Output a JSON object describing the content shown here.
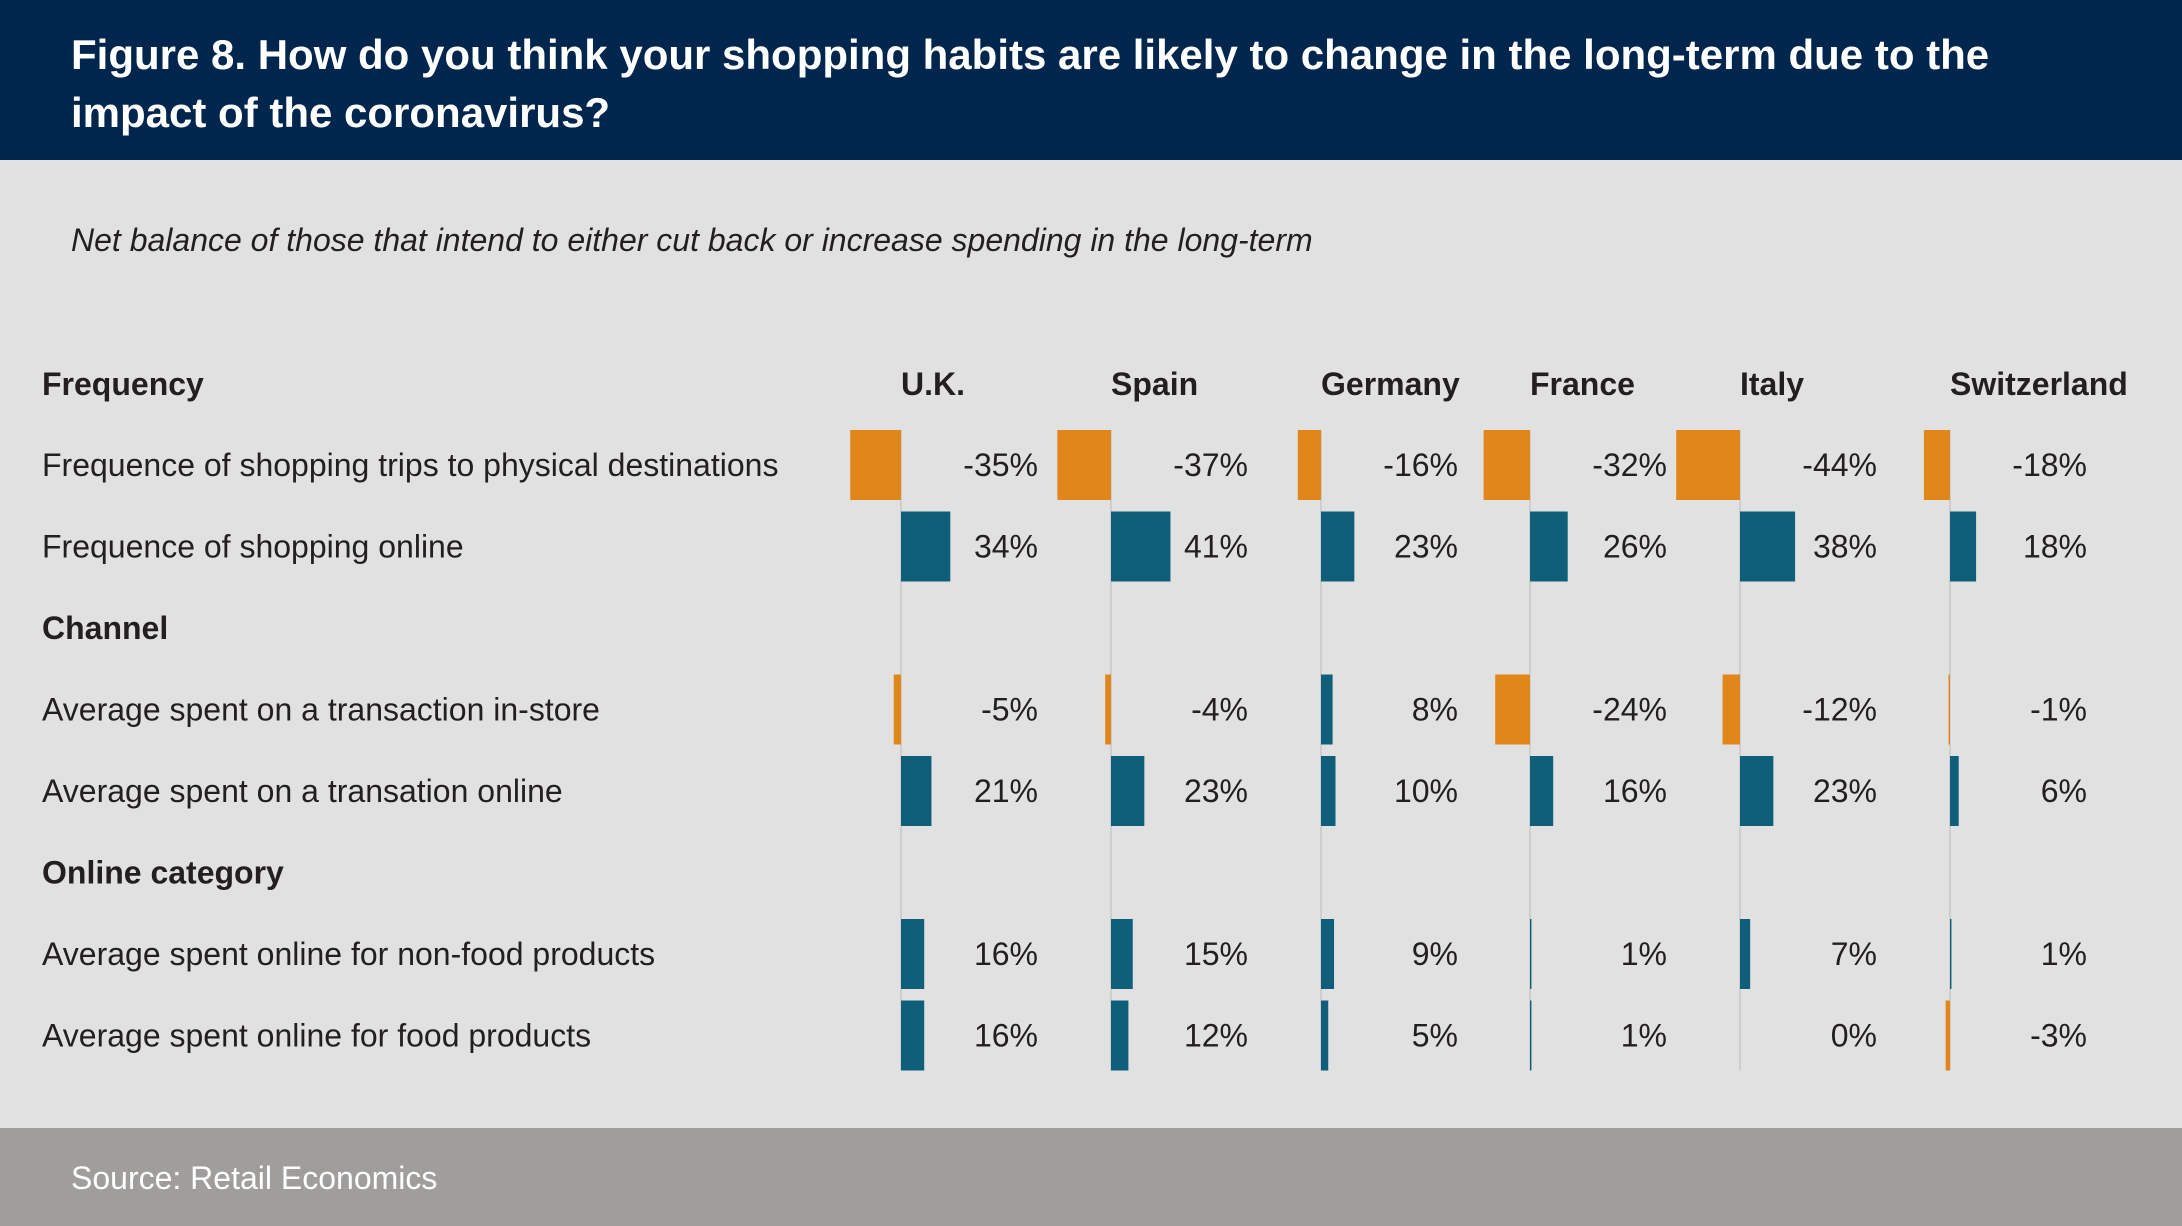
{
  "title": "Figure 8. How do you think your shopping habits are likely to change in the long-term due to the impact of the coronavirus?",
  "subtitle": "Net balance of those that intend to either cut back or increase spending in the long-term",
  "source": "Source: Retail Economics",
  "colors": {
    "negative": "#e0861a",
    "positive": "#0f5f7a",
    "header_bg": "#00264d",
    "footer_bg": "#a09e9c",
    "background": "#e1e1e1"
  },
  "chart_data": {
    "type": "bar",
    "orientation": "horizontal",
    "title": "Figure 8. How do you think your shopping habits are likely to change in the long-term due to the impact of the coronavirus?",
    "subtitle": "Net balance of those that intend to either cut back or increase spending in the long-term",
    "countries": [
      "U.K.",
      "Spain",
      "Germany",
      "France",
      "Italy",
      "Switzerland"
    ],
    "groups": [
      {
        "heading": "Frequency",
        "items": [
          {
            "label": "Frequence of shopping trips to physical destinations",
            "values": [
              -35,
              -37,
              -16,
              -32,
              -44,
              -18
            ]
          },
          {
            "label": "Frequence of shopping online",
            "values": [
              34,
              41,
              23,
              26,
              38,
              18
            ]
          }
        ]
      },
      {
        "heading": "Channel",
        "items": [
          {
            "label": "Average spent on a transaction in-store",
            "values": [
              -5,
              -4,
              8,
              -24,
              -12,
              -1
            ]
          },
          {
            "label": "Average spent on a transation online",
            "values": [
              21,
              23,
              10,
              16,
              23,
              6
            ]
          }
        ]
      },
      {
        "heading": "Online category",
        "items": [
          {
            "label": "Average spent online for non-food products",
            "values": [
              16,
              15,
              9,
              1,
              7,
              1
            ]
          },
          {
            "label": "Average spent online for food products",
            "values": [
              16,
              12,
              5,
              1,
              0,
              -3
            ]
          }
        ]
      }
    ],
    "value_suffix": "%"
  }
}
